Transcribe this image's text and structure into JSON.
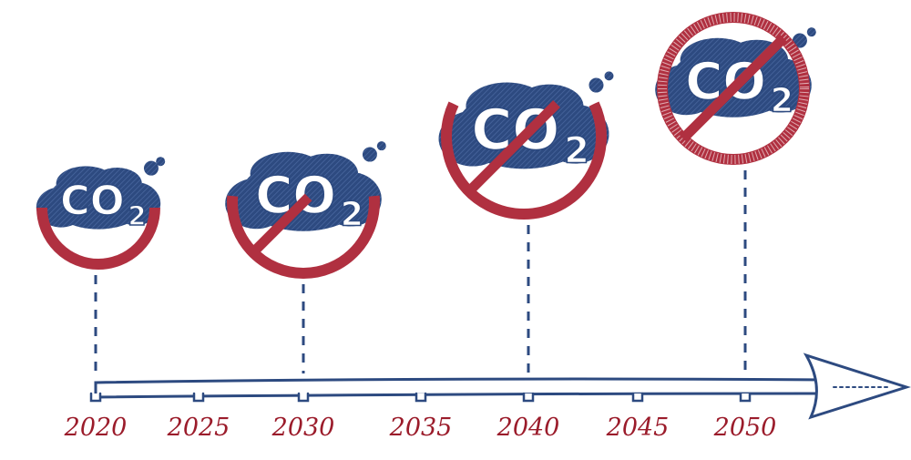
{
  "timeline": {
    "years": [
      "2020",
      "2025",
      "2030",
      "2035",
      "2040",
      "2045",
      "2050"
    ]
  },
  "icons": [
    {
      "text": "CO",
      "sub": "2"
    },
    {
      "text": "CO",
      "sub": "2"
    },
    {
      "text": "CO",
      "sub": "2"
    },
    {
      "text": "CO",
      "sub": "2"
    }
  ]
}
